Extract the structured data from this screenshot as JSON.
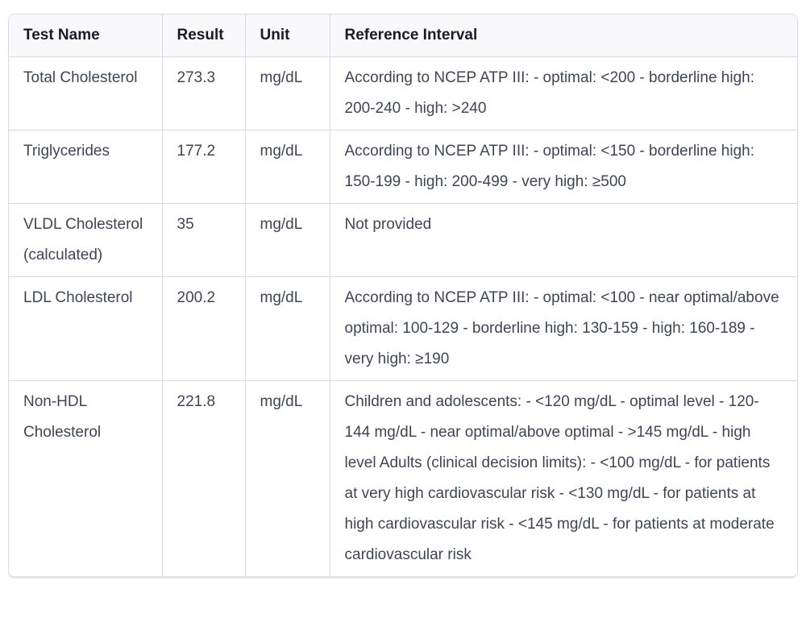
{
  "table": {
    "columns": {
      "test_name": "Test Name",
      "result": "Result",
      "unit": "Unit",
      "reference": "Reference Interval"
    },
    "rows": [
      {
        "test_name": "Total Cholesterol",
        "result": "273.3",
        "unit": "mg/dL",
        "reference": "According to NCEP ATP III: - optimal: <200 - borderline high: 200-240 - high: >240"
      },
      {
        "test_name": "Triglycerides",
        "result": "177.2",
        "unit": "mg/dL",
        "reference": "According to NCEP ATP III: - optimal: <150 - borderline high: 150-199 - high: 200-499 - very high: ≥500"
      },
      {
        "test_name": "VLDL Cholesterol (calculated)",
        "result": "35",
        "unit": "mg/dL",
        "reference": "Not provided"
      },
      {
        "test_name": "LDL Cholesterol",
        "result": "200.2",
        "unit": "mg/dL",
        "reference": "According to NCEP ATP III: - optimal: <100 - near optimal/above optimal: 100-129 - borderline high: 130-159 - high: 160-189 - very high: ≥190"
      },
      {
        "test_name": "Non-HDL Cholesterol",
        "result": "221.8",
        "unit": "mg/dL",
        "reference": "Children and adolescents: - <120 mg/dL - optimal level - 120-144 mg/dL - near optimal/above optimal - >145 mg/dL - high level Adults (clinical decision limits): - <100 mg/dL - for patients at very high cardiovascular risk - <130 mg/dL - for patients at high cardiovascular risk - <145 mg/dL - for patients at moderate cardiovascular risk"
      }
    ]
  },
  "colors": {
    "border": "#d9d9e3",
    "header_background": "#f9f9fb",
    "header_text": "#181b25",
    "body_text": "#3e4655",
    "page_background": "#ffffff"
  }
}
